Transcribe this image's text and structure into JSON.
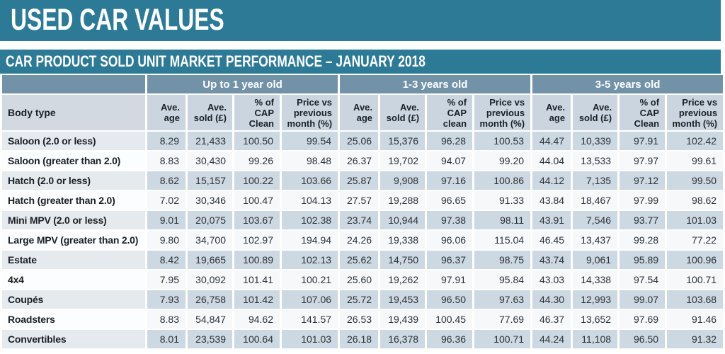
{
  "header": {
    "title": "USED CAR VALUES",
    "subtitle": "CAR PRODUCT SOLD UNIT MARKET PERFORMANCE – JANUARY 2018"
  },
  "colors": {
    "teal": "#2d7a96",
    "slate": "#7292a8",
    "subhead": "#cbd5df",
    "stripeData": "#ccd8e2",
    "stripeBody": "#e5eaee",
    "plainData": "#f6f8fa",
    "plainBody": "#fcfdfe"
  },
  "chart_data": {
    "type": "table",
    "title": "CAR PRODUCT SOLD UNIT MARKET PERFORMANCE – JANUARY 2018",
    "row_header": "Body type",
    "groups": [
      {
        "label": "Up to 1 year old",
        "columns": [
          "Ave. age",
          "Ave. sold (£)",
          "% of CAP Clean",
          "Price vs previous month (%)"
        ]
      },
      {
        "label": "1-3 years old",
        "columns": [
          "Ave. age",
          "Ave. sold (£)",
          "% of CAP clean",
          "Price vs previous month (%)"
        ]
      },
      {
        "label": "3-5 years old",
        "columns": [
          "Ave. age",
          "Ave. sold (£)",
          "% of CAP Clean",
          "Price vs previous month (%)"
        ]
      }
    ],
    "rows": [
      {
        "body_type": "Saloon (2.0 or less)",
        "values": [
          "8.29",
          "21,433",
          "100.50",
          "99.54",
          "25.06",
          "15,376",
          "96.28",
          "100.53",
          "44.47",
          "10,339",
          "97.91",
          "102.42"
        ]
      },
      {
        "body_type": "Saloon (greater than 2.0)",
        "values": [
          "8.83",
          "30,430",
          "99.26",
          "98.48",
          "26.37",
          "19,702",
          "94.07",
          "99.20",
          "44.04",
          "13,533",
          "97.97",
          "99.61"
        ]
      },
      {
        "body_type": "Hatch (2.0 or less)",
        "values": [
          "8.62",
          "15,157",
          "100.22",
          "103.66",
          "25.87",
          "9,908",
          "97.16",
          "100.86",
          "44.12",
          "7,135",
          "97.12",
          "99.50"
        ]
      },
      {
        "body_type": "Hatch (greater than 2.0)",
        "values": [
          "7.02",
          "30,346",
          "100.47",
          "104.13",
          "27.57",
          "19,288",
          "96.65",
          "91.33",
          "43.84",
          "18,467",
          "97.99",
          "98.62"
        ]
      },
      {
        "body_type": "Mini MPV (2.0 or less)",
        "values": [
          "9.01",
          "20,075",
          "103.67",
          "102.38",
          "23.74",
          "10,944",
          "97.38",
          "98.11",
          "43.91",
          "7,546",
          "93.77",
          "101.03"
        ]
      },
      {
        "body_type": "Large MPV (greater than 2.0)",
        "values": [
          "9.80",
          "34,700",
          "102.97",
          "194.94",
          "24.26",
          "19,338",
          "96.06",
          "115.04",
          "46.45",
          "13,437",
          "99.28",
          "77.22"
        ]
      },
      {
        "body_type": "Estate",
        "values": [
          "8.42",
          "19,665",
          "100.89",
          "102.13",
          "25.62",
          "14,750",
          "96.37",
          "98.75",
          "43.74",
          "9,061",
          "95.89",
          "100.96"
        ]
      },
      {
        "body_type": "4x4",
        "values": [
          "7.95",
          "30,092",
          "101.41",
          "100.21",
          "25.60",
          "19,262",
          "97.91",
          "95.84",
          "43.03",
          "14,338",
          "97.54",
          "100.71"
        ]
      },
      {
        "body_type": "Coupés",
        "values": [
          "7.93",
          "26,758",
          "101.42",
          "107.06",
          "25.72",
          "19,453",
          "96.50",
          "97.63",
          "44.30",
          "12,993",
          "99.07",
          "103.68"
        ]
      },
      {
        "body_type": "Roadsters",
        "values": [
          "8.83",
          "54,847",
          "94.62",
          "141.57",
          "26.53",
          "19,439",
          "100.45",
          "77.69",
          "46.37",
          "13,652",
          "97.69",
          "91.46"
        ]
      },
      {
        "body_type": "Convertibles",
        "values": [
          "8.01",
          "23,539",
          "100.64",
          "101.03",
          "26.18",
          "16,378",
          "96.36",
          "100.71",
          "44.24",
          "11,108",
          "96.50",
          "91.32"
        ]
      }
    ]
  }
}
